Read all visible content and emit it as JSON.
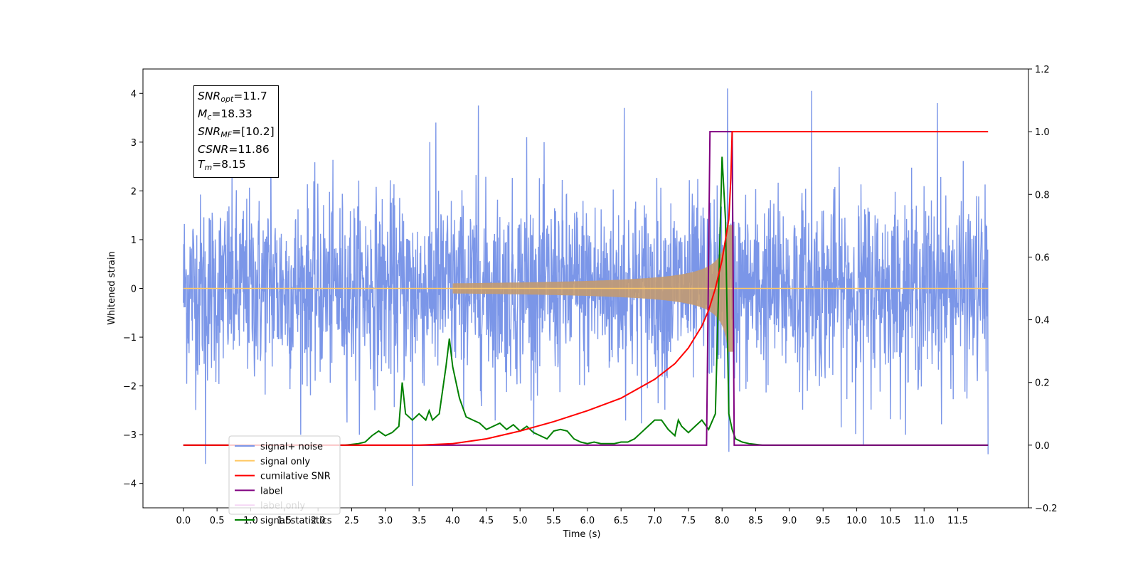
{
  "chart_data": {
    "type": "line",
    "xlabel": "Time (s)",
    "ylabel": "Whitened strain",
    "xlim": [
      -0.6,
      12.55
    ],
    "ylim": [
      -4.5,
      4.5
    ],
    "y2lim": [
      -0.2,
      1.2
    ],
    "x_ticks": [
      "0.0",
      "0.5",
      "1.0",
      "1.5",
      "2.0",
      "2.5",
      "3.0",
      "3.5",
      "4.0",
      "4.5",
      "5.0",
      "5.5",
      "6.0",
      "6.5",
      "7.0",
      "7.5",
      "8.0",
      "8.5",
      "9.0",
      "9.5",
      "10.0",
      "10.5",
      "11.0",
      "11.5"
    ],
    "y_ticks": [
      "4",
      "3",
      "2",
      "1",
      "0",
      "−1",
      "−2",
      "−3",
      "−4"
    ],
    "y2_ticks": [
      "1.2",
      "1.0",
      "0.8",
      "0.6",
      "0.4",
      "0.2",
      "0.0",
      "−0.2"
    ],
    "legend_position": "lower left",
    "legend": [
      {
        "label": "signal+ noise",
        "color": "#7b96e8"
      },
      {
        "label": "signal only",
        "color": "#ffc966"
      },
      {
        "label": "cumilative SNR",
        "color": "#ff0000"
      },
      {
        "label": "label",
        "color": "#800080"
      },
      {
        "label": "label only",
        "color": "#f5d7f5"
      },
      {
        "label": "signal statistics",
        "color": "#008000"
      }
    ],
    "annotation": {
      "snr_opt": {
        "sym": "SNR",
        "sub": "opt",
        "value": "=11.7"
      },
      "mc": {
        "sym": "M",
        "sub": "c",
        "value": "=18.33"
      },
      "snr_mf": {
        "sym": "SNR",
        "sub": "MF",
        "value": "=[10.2]"
      },
      "csnr": {
        "sym": "CSNR",
        "value": "=11.86"
      },
      "tm": {
        "sym": "T",
        "sub": "m",
        "value": "=8.15"
      }
    },
    "series": [
      {
        "name": "signal+ noise",
        "axis": "left",
        "color": "#7b96e8",
        "description": "whitened noise plus signal, approx. amplitude ±2.5 with spikes to ±4, t from 0 to 11.95 s",
        "noise_sigma": 1.0,
        "t_start": 0.0,
        "t_end": 11.95,
        "spikes": [
          [
            0.33,
            -3.6
          ],
          [
            1.3,
            3.0
          ],
          [
            3.4,
            -4.05
          ],
          [
            3.75,
            3.4
          ],
          [
            4.38,
            3.75
          ],
          [
            5.1,
            3.1
          ],
          [
            6.55,
            3.7
          ],
          [
            8.08,
            4.1
          ],
          [
            8.1,
            -3.35
          ],
          [
            9.33,
            4.05
          ],
          [
            10.1,
            -3.2
          ],
          [
            11.2,
            3.8
          ],
          [
            11.95,
            -3.4
          ]
        ]
      },
      {
        "name": "signal only",
        "axis": "left",
        "color": "#ffc966",
        "description": "chirp waveform whose amplitude grows toward merger at 8.15 s",
        "merger_time": 8.15,
        "peak_amplitude": 1.3
      },
      {
        "name": "cumilative SNR",
        "axis": "right",
        "x": [
          0.0,
          3.5,
          4.0,
          4.5,
          5.0,
          5.5,
          6.0,
          6.5,
          7.0,
          7.3,
          7.5,
          7.7,
          7.8,
          7.9,
          8.0,
          8.1,
          8.13,
          8.15,
          11.95
        ],
        "y": [
          0.0,
          0.0,
          0.005,
          0.02,
          0.045,
          0.075,
          0.11,
          0.15,
          0.21,
          0.26,
          0.31,
          0.38,
          0.43,
          0.5,
          0.59,
          0.72,
          0.85,
          1.0,
          1.0
        ]
      },
      {
        "name": "label",
        "axis": "right",
        "x": [
          0.0,
          7.77,
          7.82,
          8.15,
          8.18,
          11.95
        ],
        "y": [
          0.0,
          0.0,
          1.0,
          1.0,
          0.0,
          0.0
        ]
      },
      {
        "name": "signal statistics",
        "axis": "right",
        "x": [
          0.0,
          2.4,
          2.6,
          2.7,
          2.8,
          2.9,
          3.0,
          3.1,
          3.2,
          3.25,
          3.3,
          3.35,
          3.4,
          3.5,
          3.6,
          3.65,
          3.7,
          3.8,
          3.9,
          3.95,
          4.0,
          4.1,
          4.2,
          4.3,
          4.4,
          4.5,
          4.6,
          4.7,
          4.8,
          4.9,
          5.0,
          5.1,
          5.2,
          5.3,
          5.4,
          5.5,
          5.6,
          5.7,
          5.8,
          5.9,
          6.0,
          6.1,
          6.2,
          6.3,
          6.4,
          6.5,
          6.6,
          6.7,
          6.8,
          6.9,
          7.0,
          7.1,
          7.2,
          7.3,
          7.35,
          7.4,
          7.5,
          7.6,
          7.7,
          7.8,
          7.9,
          8.0,
          8.05,
          8.1,
          8.15,
          8.2,
          8.3,
          8.4,
          8.6,
          9.0,
          11.95
        ],
        "y": [
          0.0,
          0.0,
          0.005,
          0.01,
          0.03,
          0.045,
          0.03,
          0.04,
          0.06,
          0.2,
          0.1,
          0.09,
          0.08,
          0.1,
          0.08,
          0.11,
          0.08,
          0.1,
          0.25,
          0.34,
          0.25,
          0.15,
          0.09,
          0.08,
          0.07,
          0.05,
          0.06,
          0.07,
          0.05,
          0.065,
          0.045,
          0.06,
          0.04,
          0.03,
          0.02,
          0.045,
          0.05,
          0.045,
          0.02,
          0.01,
          0.005,
          0.01,
          0.005,
          0.005,
          0.005,
          0.01,
          0.01,
          0.02,
          0.04,
          0.06,
          0.08,
          0.08,
          0.05,
          0.03,
          0.08,
          0.06,
          0.04,
          0.06,
          0.08,
          0.05,
          0.1,
          0.92,
          0.72,
          0.1,
          0.05,
          0.02,
          0.01,
          0.005,
          0.0,
          0.0,
          0.0
        ]
      }
    ]
  },
  "colors": {
    "noise": "#7b96e8",
    "signal": "#ffc966",
    "overlap": "#c29a72",
    "snr": "#ff0000",
    "label": "#800080",
    "stats": "#008000"
  }
}
